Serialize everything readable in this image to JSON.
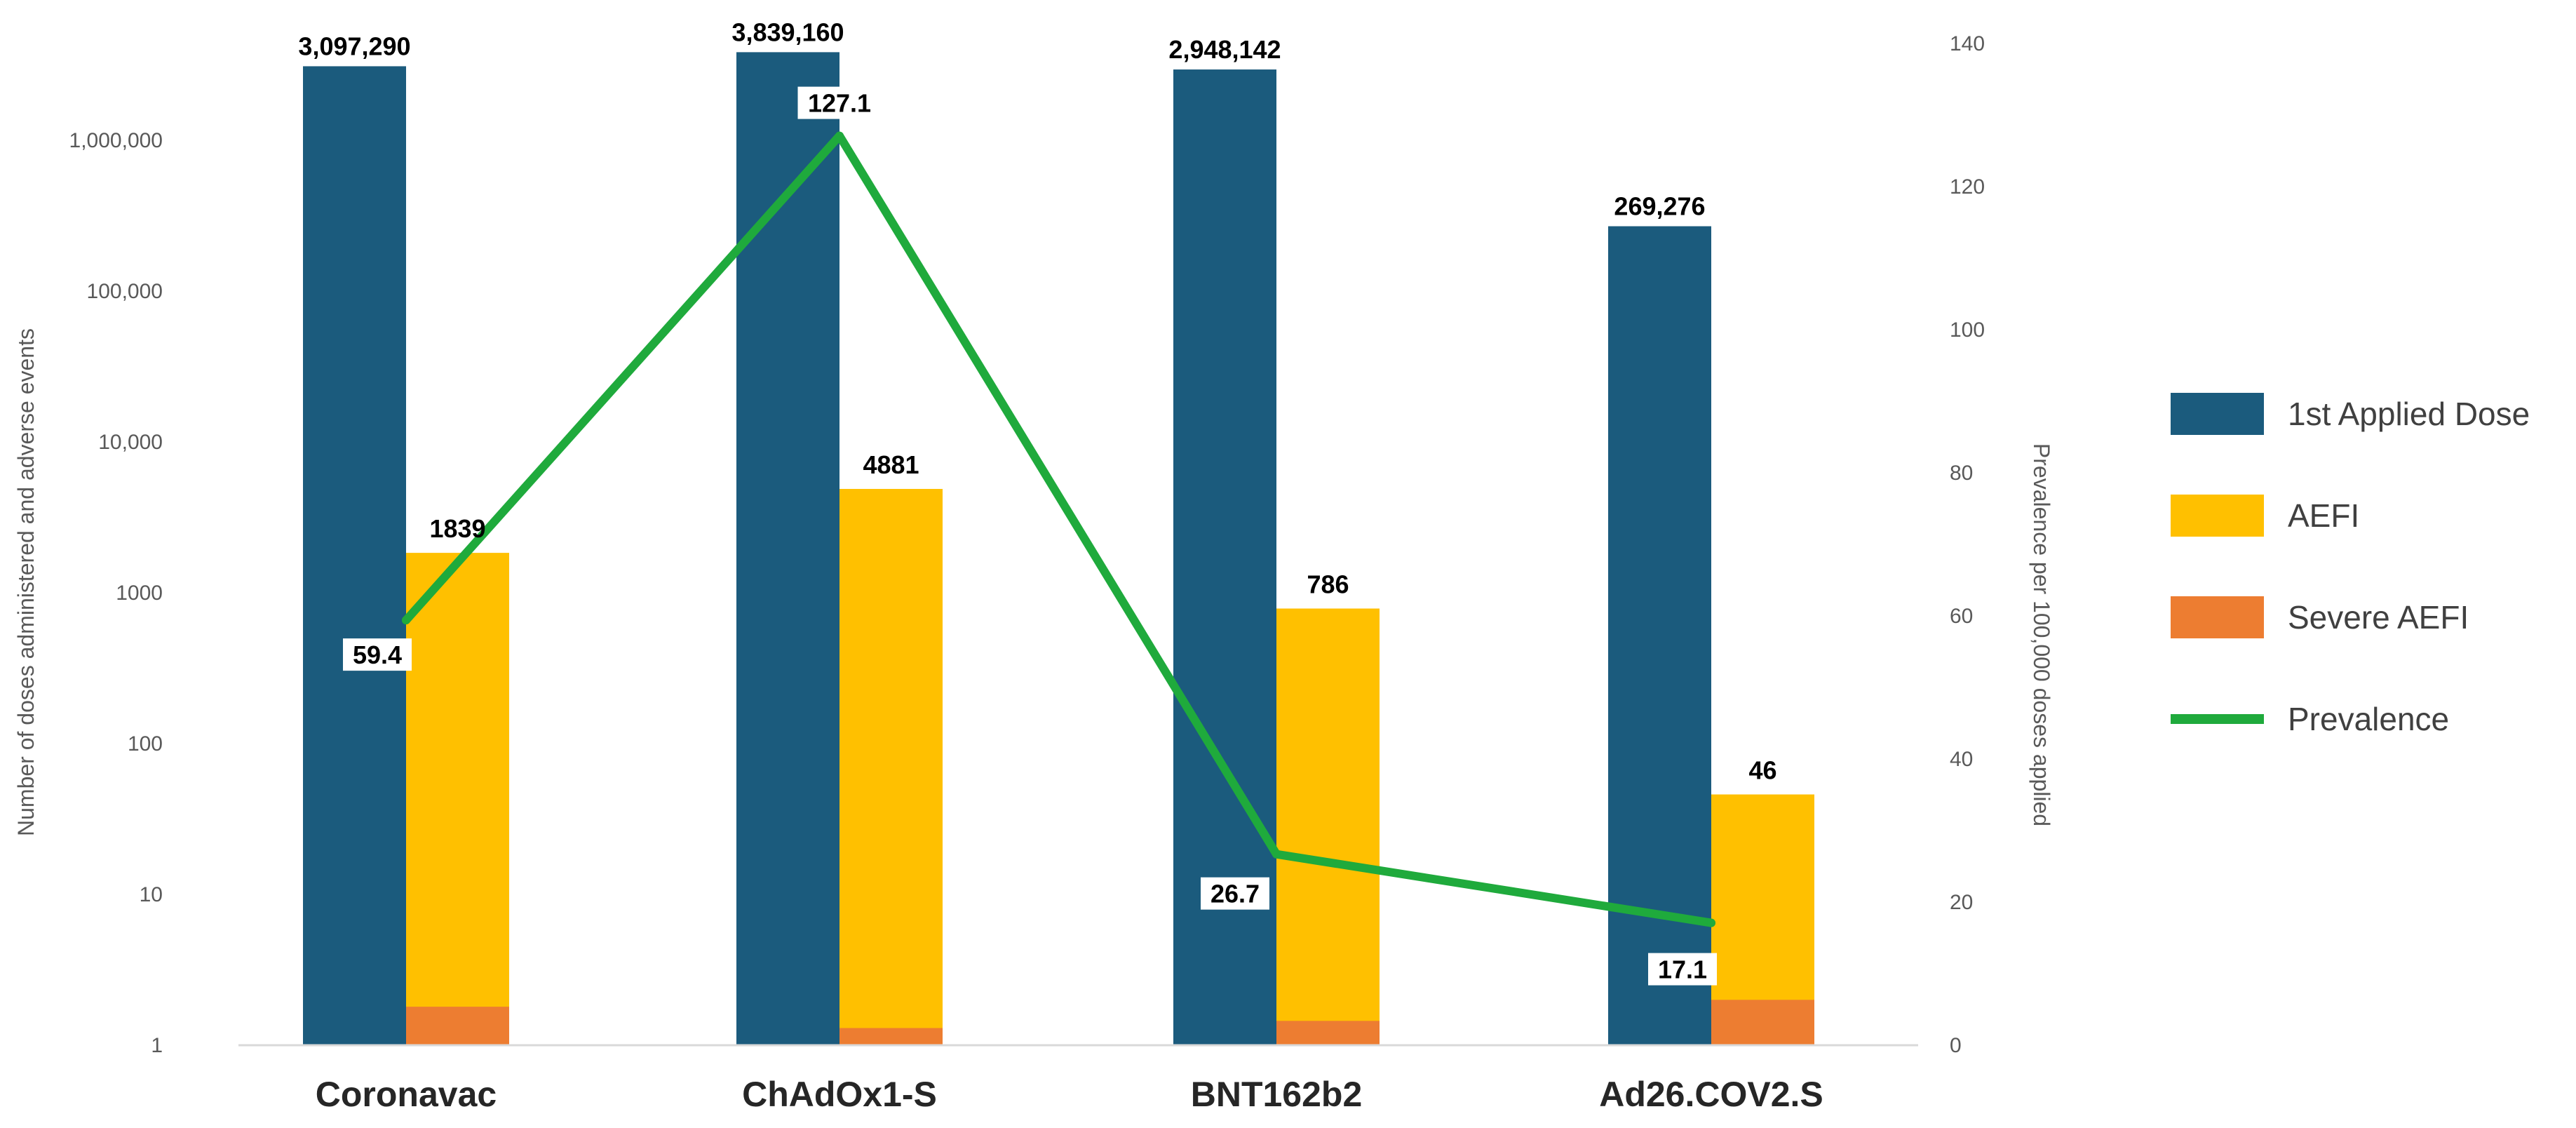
{
  "chart_data": {
    "type": "bar",
    "categories": [
      "Coronavac",
      "ChAdOx1-S",
      "BNT162b2",
      "Ad26.COV2.S"
    ],
    "series": [
      {
        "name": "1st Applied Dose",
        "kind": "bar",
        "axis": "left",
        "color": "#1b5b7d",
        "values": [
          3097290,
          3839160,
          2948142,
          269276
        ],
        "labels": [
          "3,097,290",
          "3,839,160",
          "2,948,142",
          "269,276"
        ]
      },
      {
        "name": "AEFI",
        "kind": "bar",
        "axis": "left",
        "color": "#ffc000",
        "values": [
          1839,
          4881,
          786,
          46
        ],
        "labels": [
          "1839",
          "4881",
          "786",
          "46"
        ]
      },
      {
        "name": "Severe AEFI",
        "kind": "bar",
        "axis": "left",
        "color": "#ed7d31",
        "values": [
          1.8,
          1.3,
          1.45,
          2.0
        ]
      },
      {
        "name": "Prevalence",
        "kind": "line",
        "axis": "right",
        "color": "#1faa3c",
        "values": [
          59.4,
          127.1,
          26.7,
          17.1
        ],
        "labels": [
          "59.4",
          "127.1",
          "26.7",
          "17.1"
        ]
      }
    ],
    "y_left": {
      "label": "Number of doses administered and adverse events",
      "scale": "log",
      "range": [
        1,
        6000000
      ],
      "ticks": [
        1,
        10,
        100,
        1000,
        10000,
        100000,
        1000000
      ],
      "tick_labels": [
        "1",
        "10",
        "100",
        "1000",
        "10,000",
        "100,000",
        "1,000,000"
      ]
    },
    "y_right": {
      "label": "Prevalence per 100,000  doses applied",
      "scale": "linear",
      "range": [
        0,
        140
      ],
      "ticks": [
        0,
        20,
        40,
        60,
        80,
        100,
        120,
        140
      ],
      "tick_labels": [
        "0",
        "20",
        "40",
        "60",
        "80",
        "100",
        "120",
        "140"
      ]
    },
    "grid": false,
    "legend_position": "right"
  }
}
